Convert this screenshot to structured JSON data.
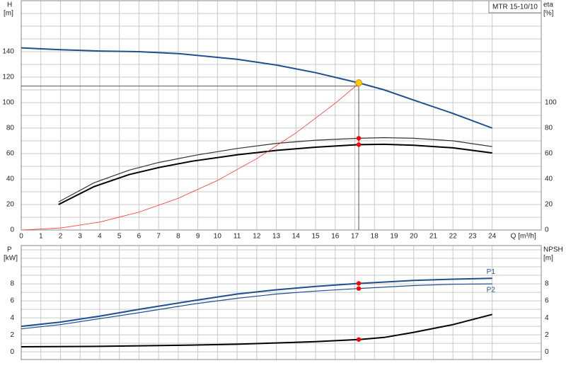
{
  "chart_data": [
    {
      "type": "line",
      "title": "MTR 15-10/10",
      "y_label": "H",
      "y_unit": "[m]",
      "y2_label": "eta",
      "y2_unit": "[%]",
      "x_label": "Q [m³/h]",
      "xlim": [
        0,
        26.5
      ],
      "xticks": [
        0,
        1,
        2,
        3,
        4,
        5,
        6,
        7,
        8,
        9,
        10,
        11,
        12,
        13,
        14,
        15,
        16,
        17,
        18,
        19,
        20,
        21,
        22,
        23,
        24
      ],
      "show_xtick_labels": true,
      "ylim": [
        0,
        180
      ],
      "yticks": [
        0,
        20,
        40,
        60,
        80,
        100,
        120,
        140
      ],
      "y_minor_grid": [
        10,
        30,
        50,
        70,
        90,
        110,
        130,
        150,
        160,
        170
      ],
      "y2lim": [
        0,
        180
      ],
      "y2ticks": [
        0,
        20,
        40,
        60,
        80,
        100
      ],
      "grid": true,
      "series": [
        {
          "color": "#1f4f8f",
          "width": 2,
          "x": [
            0,
            2,
            4,
            6,
            8,
            11,
            13,
            15,
            17.2,
            18.5,
            20,
            22,
            24
          ],
          "values": [
            143,
            141.5,
            140.5,
            140,
            138.5,
            134,
            129.5,
            123.5,
            115.5,
            110,
            102,
            91.5,
            80
          ]
        },
        {
          "color": "#333333",
          "width": 1.2,
          "axis": "y2",
          "x": [
            1.9,
            3.7,
            5.5,
            7,
            9,
            11,
            13,
            15,
            17.2,
            18.5,
            20,
            22,
            24
          ],
          "values": [
            22,
            37,
            47,
            53,
            59,
            64,
            68,
            70.5,
            72,
            72.5,
            72,
            70,
            65.5
          ]
        },
        {
          "color": "#000000",
          "width": 2,
          "axis": "y2",
          "x": [
            1.9,
            3.7,
            5.5,
            7,
            8.7,
            11,
            13,
            15,
            17.2,
            18.5,
            20,
            22,
            24
          ],
          "values": [
            20,
            34,
            43.5,
            49,
            54,
            59,
            62.5,
            65,
            67,
            67.3,
            66.5,
            64.5,
            60.5
          ]
        },
        {
          "color": "#ff3333",
          "width": 0.8,
          "x": [
            0,
            2,
            4,
            6,
            8,
            10,
            12,
            14,
            16,
            17.2
          ],
          "values": [
            0,
            1.55,
            6.22,
            14,
            24.9,
            38.9,
            56,
            76.2,
            99.5,
            115
          ]
        }
      ],
      "ref_x": 17.2,
      "ref_y": 113,
      "points": [
        {
          "x": 17.2,
          "y": 115.5,
          "color": "#ffcc00"
        },
        {
          "x": 17.2,
          "y": 72,
          "color": "#ff0000"
        },
        {
          "x": 17.2,
          "y": 67,
          "color": "#ff0000"
        }
      ]
    },
    {
      "type": "line",
      "y_label": "P",
      "y_unit": "[kW]",
      "y2_label": "NPSH",
      "y2_unit": "[m]",
      "xlim": [
        0,
        26.5
      ],
      "xticks": [
        0,
        1,
        2,
        3,
        4,
        5,
        6,
        7,
        8,
        9,
        10,
        11,
        12,
        13,
        14,
        15,
        16,
        17,
        18,
        19,
        20,
        21,
        22,
        23,
        24
      ],
      "show_xtick_labels": false,
      "ylim": [
        -0.9,
        12.5
      ],
      "yticks": [
        0,
        2,
        4,
        6,
        8
      ],
      "y_minor_grid": [
        1,
        3,
        5,
        7,
        9,
        10,
        11,
        12
      ],
      "y2lim": [
        -0.9,
        12.5
      ],
      "y2ticks": [
        0,
        2,
        4,
        6,
        8
      ],
      "grid": true,
      "series": [
        {
          "name": "P1",
          "color": "#1f4f8f",
          "width": 2,
          "x": [
            0,
            2,
            4,
            6,
            8.7,
            11,
            13,
            15,
            17.2,
            20,
            22,
            24
          ],
          "values": [
            3,
            3.5,
            4.2,
            5,
            6,
            6.8,
            7.3,
            7.7,
            8.05,
            8.4,
            8.55,
            8.65
          ]
        },
        {
          "name": "P2",
          "color": "#1f4f8f",
          "width": 1.2,
          "x": [
            0,
            2,
            4,
            6,
            8.7,
            11,
            13,
            15,
            17.2,
            20,
            22,
            24
          ],
          "values": [
            2.7,
            3.2,
            3.9,
            4.6,
            5.6,
            6.3,
            6.8,
            7.15,
            7.45,
            7.8,
            7.95,
            8.0
          ]
        },
        {
          "color": "#000000",
          "width": 2,
          "axis": "y2",
          "x": [
            0,
            4,
            8.7,
            11,
            13,
            15,
            17.2,
            18.5,
            20,
            22,
            24
          ],
          "values": [
            0.6,
            0.65,
            0.8,
            0.9,
            1.05,
            1.2,
            1.45,
            1.7,
            2.3,
            3.2,
            4.4
          ]
        }
      ],
      "points": [
        {
          "x": 17.2,
          "y": 8.05,
          "color": "#ff0000"
        },
        {
          "x": 17.2,
          "y": 7.45,
          "color": "#ff0000"
        },
        {
          "x": 17.2,
          "y": 1.45,
          "color": "#ff0000"
        }
      ]
    }
  ]
}
